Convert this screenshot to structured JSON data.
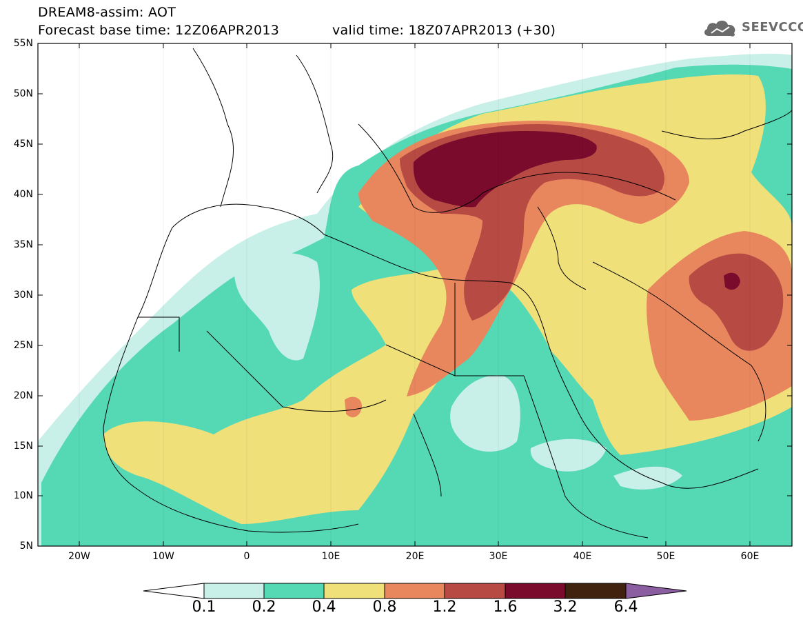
{
  "header": {
    "title": "DREAM8-assim: AOT",
    "base_time": "Forecast base time: 12Z06APR2013",
    "valid_time": "valid time: 18Z07APR2013 (+30)"
  },
  "logo": {
    "text": "SEEVCCC",
    "icon": "cloud-icon",
    "color": "#6b6b6b"
  },
  "map": {
    "projection": "lat-lon",
    "lat_range": [
      5,
      55
    ],
    "lon_range": [
      -25,
      65
    ],
    "lat_labels": [
      "55N",
      "50N",
      "45N",
      "40N",
      "35N",
      "30N",
      "25N",
      "20N",
      "15N",
      "10N",
      "5N"
    ],
    "lon_labels": [
      "20W",
      "10W",
      "0",
      "10E",
      "20E",
      "30E",
      "40E",
      "50E",
      "60E"
    ]
  },
  "colorbar": {
    "labels": [
      "0.1",
      "0.2",
      "0.4",
      "0.8",
      "1.2",
      "1.6",
      "3.2",
      "6.4"
    ],
    "colors": [
      "#ffffff",
      "#c8f0e8",
      "#55d8b4",
      "#f0e07a",
      "#e8875e",
      "#b84a44",
      "#7a0b2c",
      "#40220f",
      "#8a5ea0"
    ]
  }
}
